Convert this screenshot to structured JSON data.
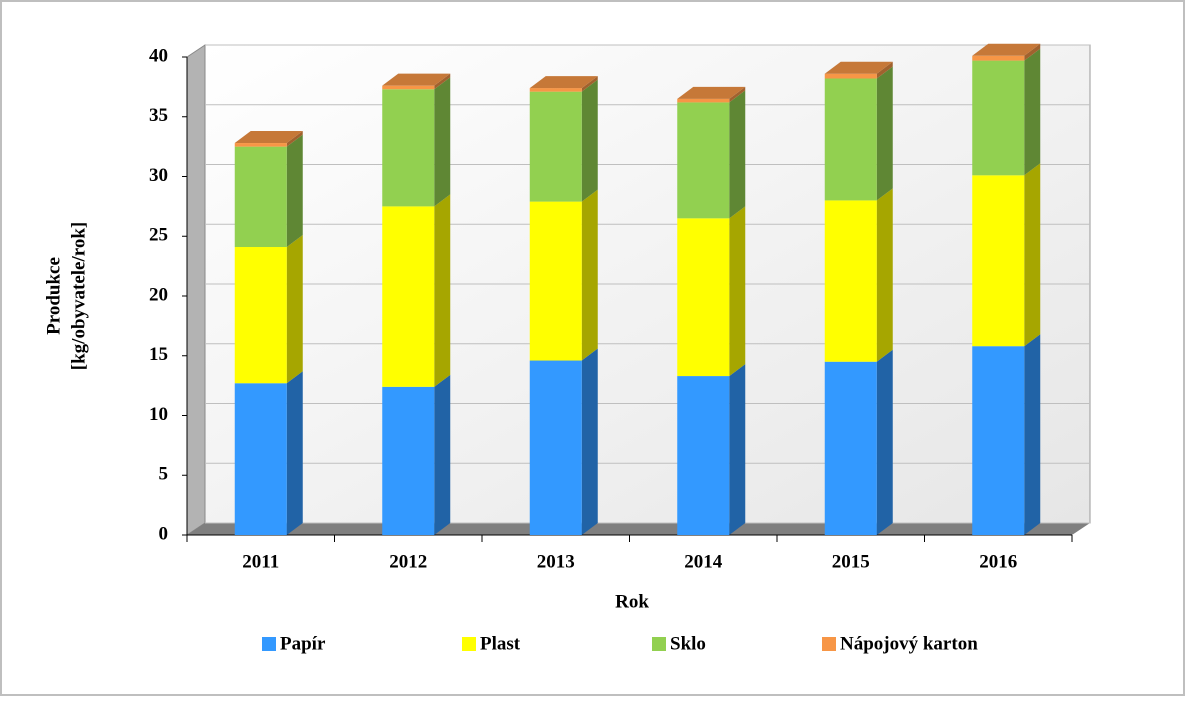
{
  "chart_data": {
    "type": "bar3d_stacked",
    "x_label": "Rok",
    "y_label": [
      "Produkce",
      "[kg/obyvatele/rok]"
    ],
    "categories": [
      "2011",
      "2012",
      "2013",
      "2014",
      "2015",
      "2016"
    ],
    "series": [
      {
        "name": "Papír",
        "color": "#3399ff",
        "values": [
          12.7,
          12.4,
          14.6,
          13.3,
          14.5,
          15.8
        ]
      },
      {
        "name": "Plast",
        "color": "#ffff00",
        "values": [
          11.4,
          15.1,
          13.3,
          13.2,
          13.5,
          14.3
        ]
      },
      {
        "name": "Sklo",
        "color": "#92d050",
        "values": [
          8.4,
          9.8,
          9.2,
          9.7,
          10.2,
          9.6
        ]
      },
      {
        "name": "Nápojový karton",
        "color": "#f79646",
        "values": [
          0.3,
          0.3,
          0.3,
          0.3,
          0.4,
          0.4
        ]
      }
    ],
    "ylim": [
      0,
      40
    ],
    "yticks": [
      0,
      5,
      10,
      15,
      20,
      25,
      30,
      35,
      40
    ],
    "grid": true,
    "legend": "bottom"
  }
}
